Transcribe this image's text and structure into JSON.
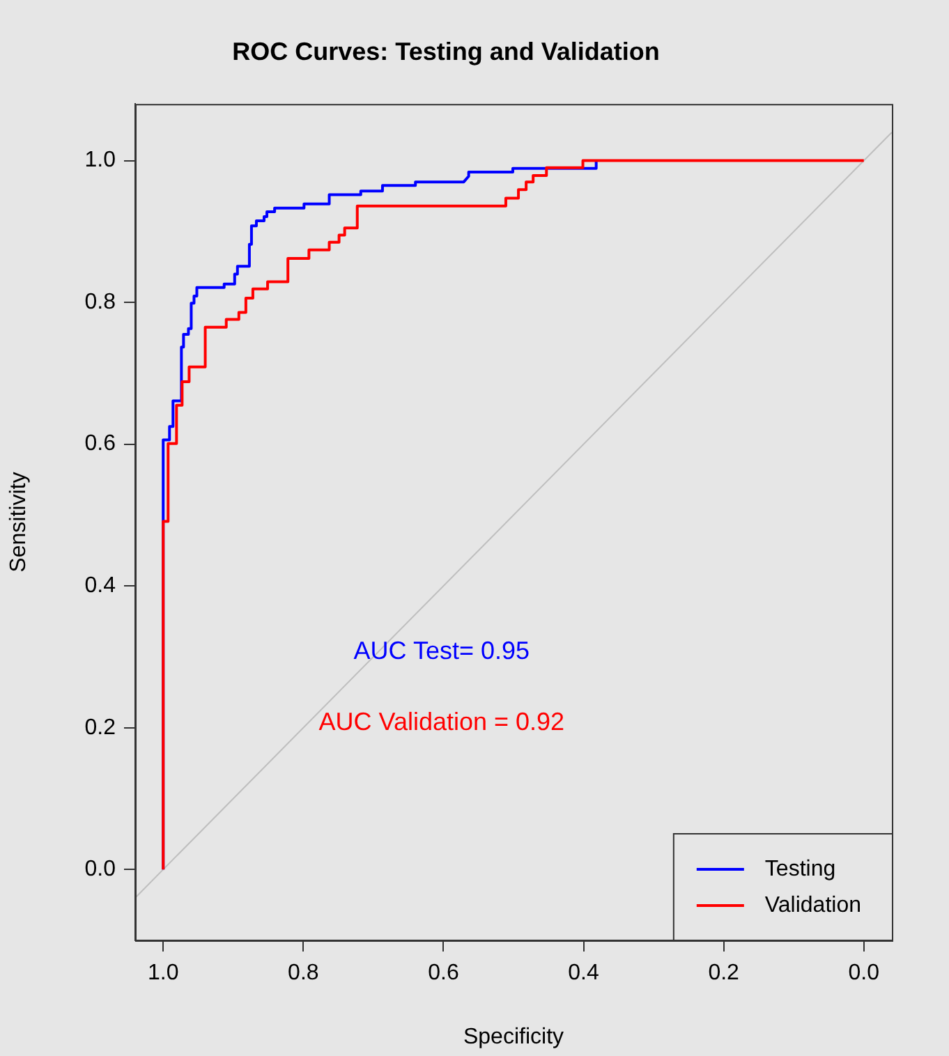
{
  "chart_data": {
    "type": "line",
    "title": "ROC Curves: Testing and Validation",
    "xlabel": "Specificity",
    "ylabel": "Sensitivity",
    "xlim": [
      1.04,
      -0.04
    ],
    "ylim": [
      -0.1,
      1.08
    ],
    "xticks": [
      {
        "value": 1,
        "label": "1.0"
      },
      0.8,
      0.6,
      0.4,
      0.2,
      {
        "value": 0,
        "label": "0.0"
      }
    ],
    "yticks": [
      {
        "value": 0,
        "label": "0.0"
      },
      0.2,
      0.4,
      0.6,
      0.8,
      {
        "value": 1,
        "label": "1.0"
      }
    ],
    "grid": false,
    "legend": "bottom right",
    "marker": "none",
    "line_style": "solid",
    "annotations": [
      "AUC Test= 0.95",
      "AUC Validation = 0.92"
    ],
    "series": [
      {
        "color": "#bebebe",
        "x": [
          1.04,
          -0.04
        ],
        "values": [
          -0.04,
          1.04
        ]
      },
      {
        "name": "Testing",
        "color": "#0000ff",
        "x": [
          1,
          1,
          0.991,
          0.991,
          0.986,
          0.986,
          0.974,
          0.974,
          0.971,
          0.971,
          0.964,
          0.964,
          0.96,
          0.96,
          0.956,
          0.956,
          0.952,
          0.952,
          0.913,
          0.913,
          0.898,
          0.898,
          0.894,
          0.894,
          0.877,
          0.877,
          0.874,
          0.874,
          0.867,
          0.867,
          0.856,
          0.856,
          0.852,
          0.852,
          0.841,
          0.841,
          0.799,
          0.799,
          0.763,
          0.763,
          0.718,
          0.718,
          0.687,
          0.687,
          0.64,
          0.64,
          0.571,
          0.564,
          0.564,
          0.501,
          0.501,
          0.382,
          0.382
        ],
        "values": [
          0,
          0.606,
          0.606,
          0.625,
          0.625,
          0.661,
          0.661,
          0.737,
          0.737,
          0.755,
          0.755,
          0.763,
          0.763,
          0.799,
          0.799,
          0.809,
          0.809,
          0.821,
          0.821,
          0.826,
          0.826,
          0.84,
          0.84,
          0.851,
          0.851,
          0.882,
          0.882,
          0.908,
          0.908,
          0.915,
          0.915,
          0.921,
          0.921,
          0.928,
          0.928,
          0.933,
          0.933,
          0.939,
          0.939,
          0.952,
          0.952,
          0.957,
          0.957,
          0.965,
          0.965,
          0.97,
          0.97,
          0.978,
          0.984,
          0.984,
          0.989,
          0.989,
          1
        ]
      },
      {
        "name": "Validation",
        "color": "#ff0000",
        "x": [
          1,
          1,
          0.993,
          0.993,
          0.981,
          0.981,
          0.973,
          0.973,
          0.963,
          0.963,
          0.94,
          0.94,
          0.91,
          0.91,
          0.892,
          0.892,
          0.882,
          0.882,
          0.872,
          0.872,
          0.851,
          0.851,
          0.822,
          0.822,
          0.792,
          0.792,
          0.763,
          0.763,
          0.749,
          0.749,
          0.741,
          0.741,
          0.723,
          0.723,
          0.511,
          0.511,
          0.493,
          0.493,
          0.482,
          0.482,
          0.472,
          0.472,
          0.453,
          0.453,
          0.401,
          0.401,
          0
        ],
        "values": [
          0,
          0.491,
          0.491,
          0.601,
          0.601,
          0.655,
          0.655,
          0.688,
          0.688,
          0.709,
          0.709,
          0.765,
          0.765,
          0.776,
          0.776,
          0.786,
          0.786,
          0.806,
          0.806,
          0.819,
          0.819,
          0.829,
          0.829,
          0.862,
          0.862,
          0.874,
          0.874,
          0.885,
          0.885,
          0.895,
          0.895,
          0.905,
          0.905,
          0.936,
          0.936,
          0.947,
          0.947,
          0.959,
          0.959,
          0.97,
          0.97,
          0.979,
          0.979,
          0.99,
          0.99,
          1,
          1
        ]
      }
    ]
  }
}
